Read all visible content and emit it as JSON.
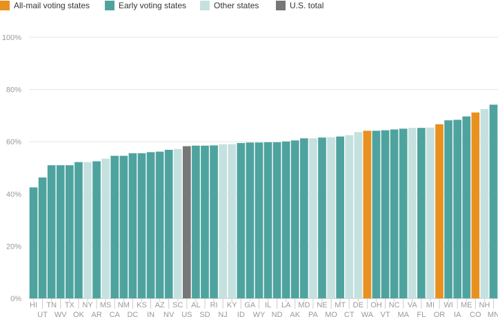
{
  "legend": [
    {
      "label": "All-mail voting states",
      "color": "#e8911f"
    },
    {
      "label": "Early voting states",
      "color": "#4fa39f"
    },
    {
      "label": "Other states",
      "color": "#c5e1df"
    },
    {
      "label": "U.S. total",
      "color": "#777777"
    }
  ],
  "chart_data": {
    "type": "bar",
    "title": "",
    "xlabel": "",
    "ylabel": "",
    "ylim": [
      0,
      100
    ],
    "yticks": [
      "0%",
      "20%",
      "40%",
      "60%",
      "80%",
      "100%"
    ],
    "grid": true,
    "legend_position": "top-left",
    "categories": [
      "HI",
      "UT",
      "TN",
      "WV",
      "TX",
      "OK",
      "NY",
      "AR",
      "MS",
      "CA",
      "NM",
      "DC",
      "KS",
      "IN",
      "AZ",
      "NV",
      "SC",
      "US",
      "AL",
      "SD",
      "RI",
      "NJ",
      "KY",
      "ID",
      "GA",
      "WY",
      "IL",
      "ND",
      "LA",
      "AK",
      "MD",
      "PA",
      "NE",
      "MO",
      "MT",
      "CT",
      "DE",
      "WA",
      "OH",
      "VT",
      "NC",
      "MA",
      "VA",
      "FL",
      "MI",
      "OR",
      "WI",
      "IA",
      "ME",
      "CO",
      "NH",
      "MN"
    ],
    "values": [
      42.5,
      46.3,
      51.0,
      51.0,
      51.0,
      52.2,
      52.2,
      52.5,
      53.5,
      54.6,
      54.6,
      55.6,
      55.6,
      56.0,
      56.2,
      56.9,
      57.2,
      58.3,
      58.5,
      58.5,
      58.6,
      59.0,
      59.1,
      59.5,
      59.7,
      59.7,
      59.8,
      59.8,
      60.1,
      60.5,
      61.3,
      61.3,
      61.6,
      61.7,
      62.0,
      62.5,
      63.7,
      64.2,
      64.2,
      64.4,
      64.7,
      65.0,
      65.3,
      65.3,
      65.4,
      66.7,
      68.2,
      68.4,
      69.7,
      71.2,
      72.5,
      74.2
    ],
    "groups": [
      "early",
      "early",
      "early",
      "early",
      "early",
      "early",
      "other",
      "early",
      "other",
      "early",
      "early",
      "early",
      "early",
      "early",
      "early",
      "early",
      "other",
      "total",
      "early",
      "early",
      "early",
      "other",
      "other",
      "early",
      "early",
      "early",
      "early",
      "early",
      "early",
      "early",
      "early",
      "other",
      "early",
      "other",
      "early",
      "other",
      "other",
      "mail",
      "early",
      "early",
      "early",
      "early",
      "other",
      "early",
      "other",
      "mail",
      "early",
      "early",
      "early",
      "mail",
      "other",
      "early"
    ]
  }
}
